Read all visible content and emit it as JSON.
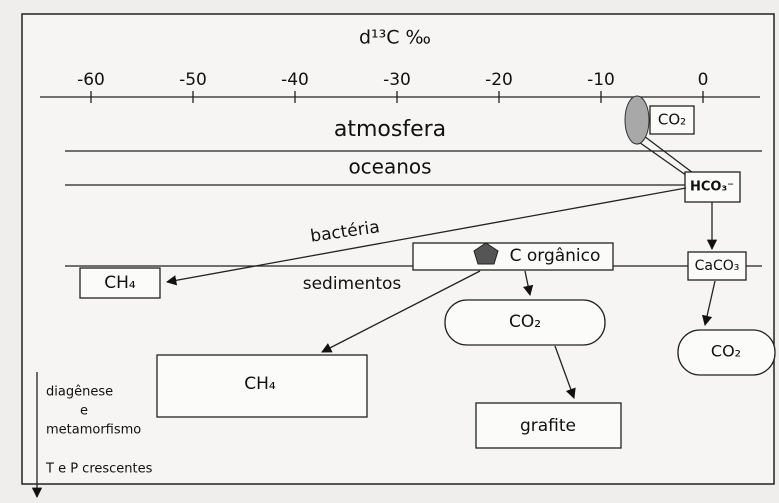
{
  "axis": {
    "title": "d¹³C ‰",
    "ticks": [
      -60,
      -50,
      -40,
      -30,
      -20,
      -10,
      0
    ]
  },
  "labels": {
    "atmosphere": "atmosfera",
    "ocean": "oceanos",
    "bacteria": "bactéria",
    "sediments": "sedimentos",
    "depth": [
      "diagênese",
      "e",
      "metamorfismo"
    ],
    "trend": "T e P crescentes"
  },
  "nodes": [
    {
      "label": "CO₂"
    },
    {
      "label": "HCO₃⁻"
    },
    {
      "label": "CH₄"
    },
    {
      "label": "C orgânico"
    },
    {
      "label": "CaCO₃"
    },
    {
      "label": "CO₂"
    },
    {
      "label": "CO₂"
    },
    {
      "label": "CH₄"
    },
    {
      "label": "grafite"
    }
  ]
}
